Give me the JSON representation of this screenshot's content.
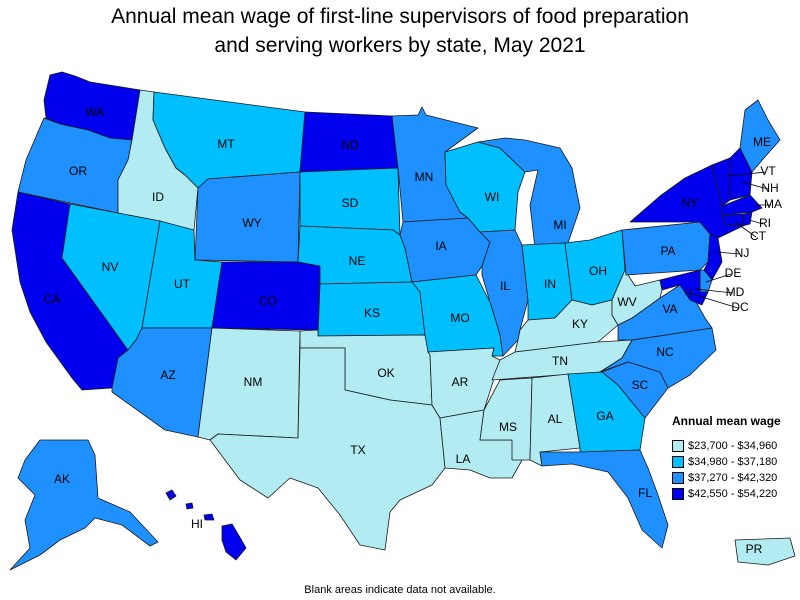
{
  "title_line1": "Annual mean wage of first-line supervisors of food preparation",
  "title_line2": "and serving workers by state, May 2021",
  "legend": {
    "title": "Annual mean wage",
    "ranges": [
      {
        "label": "$23,700 - $34,960",
        "color": "#b2ebf2"
      },
      {
        "label": "$34,980 - $37,180",
        "color": "#00bfff"
      },
      {
        "label": "$37,270 - $42,320",
        "color": "#1e90ff"
      },
      {
        "label": "$42,550 - $54,220",
        "color": "#0000ee"
      }
    ]
  },
  "footnote": "Blank areas indicate data not available.",
  "states": {
    "WA": 3,
    "OR": 2,
    "CA": 3,
    "ID": 0,
    "NV": 1,
    "MT": 1,
    "WY": 2,
    "UT": 1,
    "AZ": 2,
    "CO": 3,
    "NM": 0,
    "ND": 3,
    "SD": 1,
    "NE": 1,
    "KS": 1,
    "OK": 0,
    "TX": 0,
    "MN": 2,
    "IA": 2,
    "MO": 1,
    "AR": 0,
    "LA": 0,
    "WI": 1,
    "IL": 2,
    "MI": 2,
    "IN": 1,
    "OH": 1,
    "KY": 0,
    "TN": 0,
    "MS": 0,
    "AL": 0,
    "GA": 1,
    "FL": 2,
    "SC": 2,
    "NC": 2,
    "VA": 2,
    "WV": 0,
    "PA": 2,
    "NY": 3,
    "ME": 2,
    "VT": 3,
    "NH": 3,
    "MA": 3,
    "RI": 3,
    "CT": 3,
    "NJ": 3,
    "DE": 2,
    "MD": 3,
    "DC": 3,
    "AK": 2,
    "HI": 3,
    "PR": 0
  }
}
